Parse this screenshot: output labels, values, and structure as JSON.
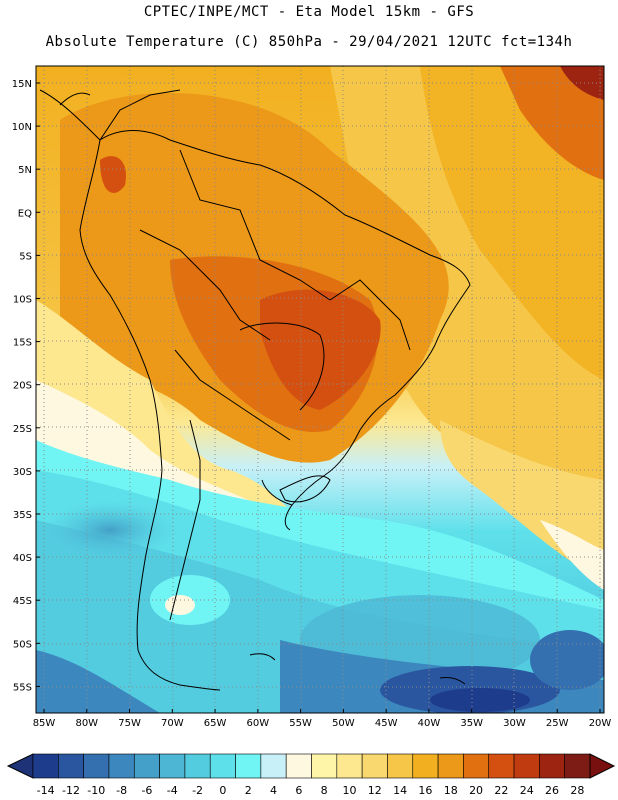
{
  "header": {
    "line1": "CPTEC/INPE/MCT -  Eta Model 15km - GFS",
    "line2": "Absolute Temperature (C) 850hPa - 29/04/2021 12UTC fct=134h"
  },
  "axes": {
    "lat_ticks": [
      "15N",
      "10N",
      "5N",
      "EQ",
      "5S",
      "10S",
      "15S",
      "20S",
      "25S",
      "30S",
      "35S",
      "40S",
      "45S",
      "50S",
      "55S"
    ],
    "lon_ticks": [
      "85W",
      "80W",
      "75W",
      "70W",
      "65W",
      "60W",
      "55W",
      "50W",
      "45W",
      "40W",
      "35W",
      "30W",
      "25W",
      "20W"
    ]
  },
  "colorbar": {
    "labels": [
      "-14",
      "-12",
      "-10",
      "-8",
      "-6",
      "-4",
      "-2",
      "0",
      "2",
      "4",
      "6",
      "8",
      "10",
      "12",
      "14",
      "16",
      "18",
      "20",
      "22",
      "24",
      "26",
      "28"
    ],
    "colors": [
      "#1e3c8c",
      "#2a56a0",
      "#3470b0",
      "#3c88be",
      "#44a0c8",
      "#4cb6d4",
      "#54cce0",
      "#5ee0ea",
      "#70f4f4",
      "#c8f0f8",
      "#fff8e0",
      "#fff5a8",
      "#fde890",
      "#fad870",
      "#f6c648",
      "#f2b020",
      "#ec9818",
      "#e07010",
      "#d45010",
      "#c03c10",
      "#9c2410",
      "#7c1c14"
    ],
    "under_color": "#1e3278",
    "over_color": "#781010"
  },
  "legend": {
    "unit": "C",
    "level": "850hPa"
  }
}
